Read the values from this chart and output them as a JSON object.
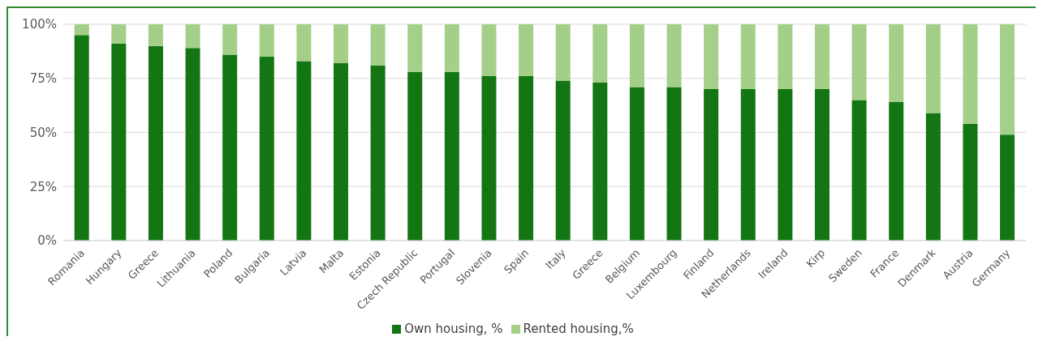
{
  "chart_data": {
    "type": "bar",
    "stacked": true,
    "categories": [
      "Romania",
      "Hungary",
      "Greece",
      "Lithuania",
      "Poland",
      "Bulgaria",
      "Latvia",
      "Malta",
      "Estonia",
      "Czech Republic",
      "Portugal",
      "Slovenia",
      "Spain",
      "Italy",
      "Greece",
      "Belgium",
      "Luxembourg",
      "Finland",
      "Netherlands",
      "Ireland",
      "Kirp",
      "Sweden",
      "France",
      "Denmark",
      "Austria",
      "Germany"
    ],
    "series": [
      {
        "name": "Own housing, %",
        "color": "#137613",
        "values": [
          95,
          91,
          90,
          89,
          86,
          85,
          83,
          82,
          81,
          78,
          78,
          76,
          76,
          74,
          73,
          71,
          71,
          70,
          70,
          70,
          70,
          65,
          64,
          59,
          54,
          49
        ]
      },
      {
        "name": "Rented housing,%",
        "color": "#a3cf88",
        "values": [
          5,
          9,
          10,
          11,
          14,
          15,
          17,
          18,
          19,
          22,
          22,
          24,
          24,
          26,
          27,
          29,
          29,
          30,
          30,
          30,
          30,
          35,
          36,
          41,
          46,
          51
        ]
      }
    ],
    "ylim": [
      0,
      100
    ],
    "yticks": [
      {
        "value": 0,
        "label": "0%"
      },
      {
        "value": 25,
        "label": "25%"
      },
      {
        "value": 50,
        "label": "50%"
      },
      {
        "value": 75,
        "label": "75%"
      },
      {
        "value": 100,
        "label": "100%"
      }
    ],
    "grid": "y",
    "legend": "bottom"
  }
}
